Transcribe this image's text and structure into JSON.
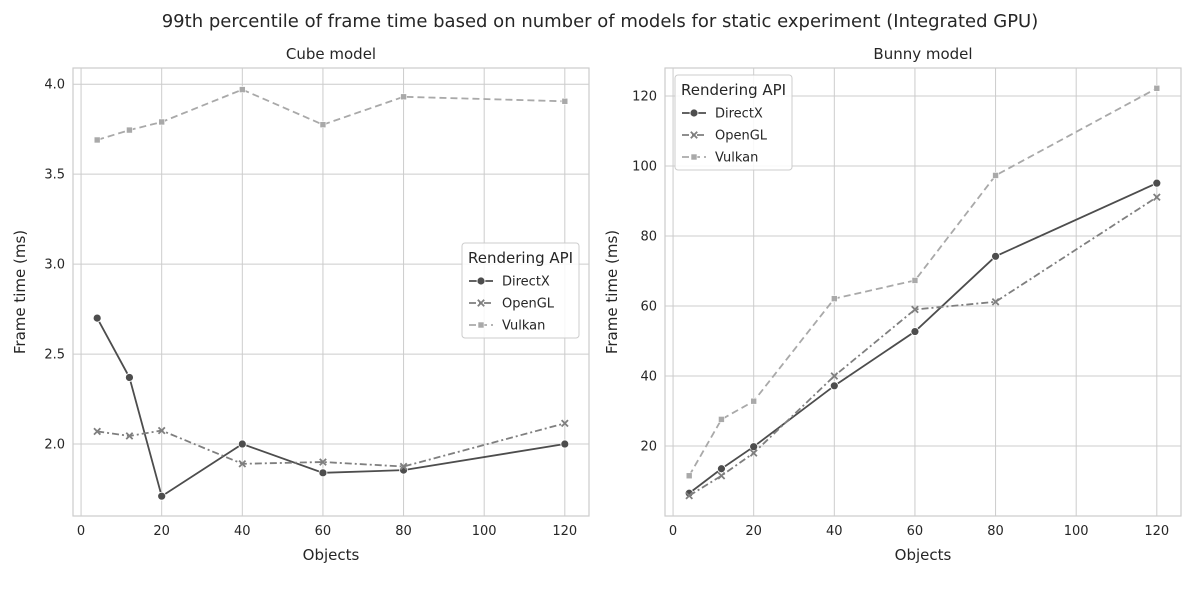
{
  "figure_title": "99th percentile of frame time based on number of models for static experiment (Integrated GPU)",
  "colors": {
    "DirectX": "#4d4d4d",
    "OpenGL": "#7f7f7f",
    "Vulkan": "#a9a9a9"
  },
  "chart_data": [
    {
      "type": "line",
      "title": "Cube model",
      "xlabel": "Objects",
      "ylabel": "Frame time (ms)",
      "xlim": [
        -2,
        126
      ],
      "ylim": [
        1.6,
        4.09
      ],
      "xticks": [
        0,
        20,
        40,
        60,
        80,
        100,
        120
      ],
      "xtick_labels": [
        "0",
        "20",
        "40",
        "60",
        "80",
        "100",
        "120"
      ],
      "yticks": [
        2.0,
        2.5,
        3.0,
        3.5,
        4.0
      ],
      "ytick_labels": [
        "2.0",
        "2.5",
        "3.0",
        "3.5",
        "4.0"
      ],
      "grid": true,
      "legend": {
        "title": "Rendering API",
        "placement": "center-right",
        "entries": [
          "DirectX",
          "OpenGL",
          "Vulkan"
        ]
      },
      "x": [
        4,
        12,
        20,
        40,
        60,
        80,
        120
      ],
      "series": [
        {
          "name": "DirectX",
          "values": [
            2.7,
            2.37,
            1.71,
            2.0,
            1.84,
            1.855,
            2.0
          ]
        },
        {
          "name": "OpenGL",
          "values": [
            2.07,
            2.045,
            2.075,
            1.89,
            1.9,
            1.875,
            2.115
          ]
        },
        {
          "name": "Vulkan",
          "values": [
            3.69,
            3.745,
            3.79,
            3.97,
            3.775,
            3.93,
            3.905
          ]
        }
      ]
    },
    {
      "type": "line",
      "title": "Bunny model",
      "xlabel": "Objects",
      "ylabel": "Frame time (ms)",
      "xlim": [
        -2,
        126
      ],
      "ylim": [
        0,
        128
      ],
      "xticks": [
        0,
        20,
        40,
        60,
        80,
        100,
        120
      ],
      "xtick_labels": [
        "0",
        "20",
        "40",
        "60",
        "80",
        "100",
        "120"
      ],
      "yticks": [
        20,
        40,
        60,
        80,
        100,
        120
      ],
      "ytick_labels": [
        "20",
        "40",
        "60",
        "80",
        "100",
        "120"
      ],
      "grid": true,
      "legend": {
        "title": "Rendering API",
        "placement": "top-left",
        "entries": [
          "DirectX",
          "OpenGL",
          "Vulkan"
        ]
      },
      "x": [
        4,
        12,
        20,
        40,
        60,
        80,
        120
      ],
      "series": [
        {
          "name": "DirectX",
          "values": [
            6.5,
            13.5,
            19.8,
            37.2,
            52.7,
            74.2,
            95.1
          ]
        },
        {
          "name": "OpenGL",
          "values": [
            5.8,
            11.5,
            18.0,
            40.0,
            59.0,
            61.2,
            91.1
          ]
        },
        {
          "name": "Vulkan",
          "values": [
            11.5,
            27.6,
            32.8,
            62.1,
            67.3,
            97.3,
            122.2
          ]
        }
      ]
    }
  ]
}
